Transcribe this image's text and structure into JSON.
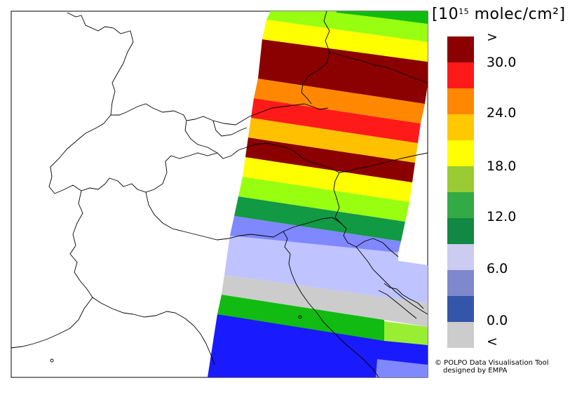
{
  "legend": {
    "unit_prefix": "[10",
    "unit_exp": "15",
    "unit_suffix": " molec/cm²]",
    "labels": {
      "over": ">",
      "t30": "30.0",
      "t24": "24.0",
      "t18": "18.0",
      "t12": "12.0",
      "t6": "6.0",
      "t0": "0.0",
      "under": "<"
    },
    "colors": [
      "#8b0000",
      "#ff1a1a",
      "#ff8800",
      "#ffc800",
      "#ffff00",
      "#99cc33",
      "#33aa44",
      "#118844",
      "#ccccf0",
      "#7f88cc",
      "#3355aa",
      "#cccccc"
    ]
  },
  "footer": {
    "line1": "© POLPO Data Visualisation Tool",
    "line2": "designed by EMPA"
  },
  "map": {
    "swath_colors": [
      "#1a1aff",
      "#99ee33",
      "#11bb11",
      "#cccccc",
      "#bfc3ff",
      "#7f88ff",
      "#119944",
      "#99ff11",
      "#ffff00",
      "#8b0000",
      "#ffc000",
      "#ff1a1a",
      "#ff8800",
      "#8b0000",
      "#ffff00",
      "#99ff11",
      "#11bb11"
    ]
  }
}
